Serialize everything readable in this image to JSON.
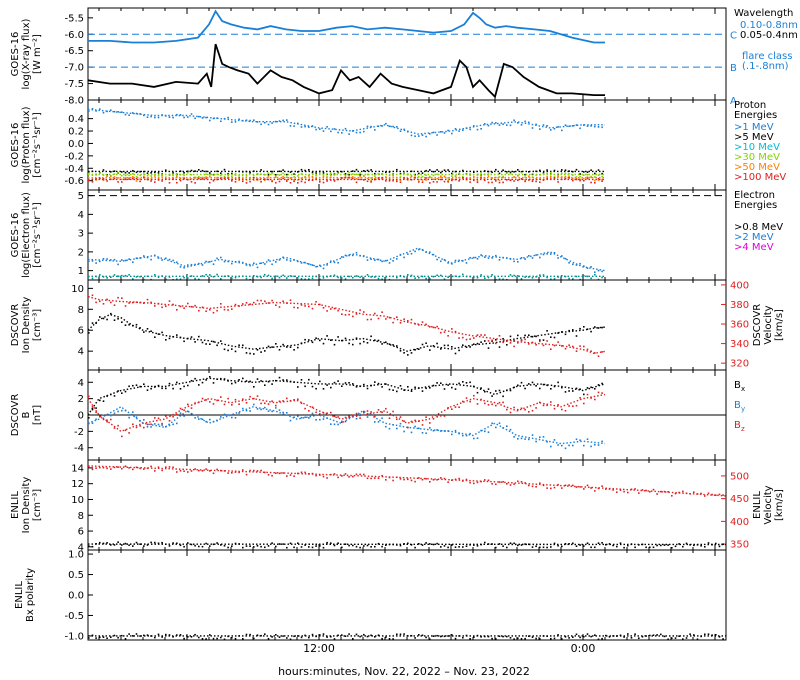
{
  "colors": {
    "black": "#000000",
    "blue": "#1a7fd6",
    "cyan": "#00bcd4",
    "green": "#7fd400",
    "orange": "#ff7f00",
    "red": "#e02020",
    "magenta": "#e000e0",
    "teal": "#009090"
  },
  "chart_data": {
    "type": "line",
    "xlabel": "hours:minutes, Nov. 22, 2022 – Nov. 23, 2022",
    "x_ticks": [
      "12:00",
      "0:00"
    ],
    "x_tick_hours": [
      12,
      24
    ],
    "x_range_hours": [
      1.5,
      30.5
    ],
    "panels": [
      {
        "id": "xray",
        "ylabel": [
          "GOES-16",
          "log(X-ray flux)",
          "[W m⁻²]"
        ],
        "ylim": [
          -8.0,
          -5.2
        ],
        "y_ticks": [
          -5.5,
          -6.0,
          -6.5,
          -7.0,
          -7.5,
          -8.0
        ],
        "y_tick_labels": [
          "-5.5",
          "-6.0",
          "-6.5",
          "-7.0",
          "-7.5",
          "-8.0"
        ],
        "legend_title": "Wavelength",
        "legend_items": [
          {
            "text": "0.10-0.8nm",
            "color": "blue"
          },
          {
            "text": "0.05-0.4nm",
            "color": "black"
          }
        ],
        "flare_class_label": [
          "flare class",
          "(.1-.8nm)"
        ],
        "flare_class_lines": [
          {
            "label": "C",
            "y": -6.0
          },
          {
            "label": "B",
            "y": -7.0
          },
          {
            "label": "A",
            "y": -8.0
          }
        ],
        "series": [
          {
            "color": "blue",
            "x": [
              1.5,
              2.5,
              3.5,
              4.5,
              5.5,
              6.5,
              7.0,
              7.3,
              7.6,
              8.0,
              8.6,
              9.2,
              9.8,
              10.5,
              11.2,
              12.0,
              12.8,
              13.5,
              14.2,
              15.0,
              15.8,
              16.5,
              17.2,
              18.0,
              18.6,
              19.0,
              19.3,
              19.6,
              20.0,
              20.5,
              21.0,
              21.8,
              22.5,
              23.5,
              24.5,
              25.0
            ],
            "y": [
              -6.2,
              -6.2,
              -6.25,
              -6.25,
              -6.2,
              -6.1,
              -5.7,
              -5.3,
              -5.6,
              -5.7,
              -5.8,
              -5.85,
              -5.75,
              -5.85,
              -5.9,
              -5.9,
              -5.8,
              -5.75,
              -5.85,
              -5.8,
              -5.85,
              -5.9,
              -5.95,
              -5.9,
              -5.7,
              -5.35,
              -5.5,
              -5.7,
              -5.8,
              -5.75,
              -5.8,
              -5.85,
              -5.9,
              -6.1,
              -6.25,
              -6.25
            ]
          },
          {
            "color": "black",
            "x": [
              1.5,
              2.5,
              3.5,
              4.5,
              5.5,
              6.5,
              6.9,
              7.1,
              7.3,
              7.6,
              7.9,
              8.3,
              8.8,
              9.2,
              9.8,
              10.3,
              10.8,
              11.3,
              12.0,
              12.6,
              13.0,
              13.4,
              13.8,
              14.3,
              14.8,
              15.3,
              15.8,
              16.5,
              17.2,
              18.0,
              18.4,
              18.7,
              19.0,
              19.3,
              19.7,
              20.0,
              20.4,
              20.8,
              21.3,
              22.0,
              22.8,
              23.5,
              24.5,
              25.0
            ],
            "y": [
              -7.4,
              -7.5,
              -7.5,
              -7.6,
              -7.45,
              -7.5,
              -7.2,
              -7.6,
              -6.3,
              -6.9,
              -7.0,
              -7.1,
              -7.2,
              -7.5,
              -7.1,
              -7.3,
              -7.4,
              -7.6,
              -7.8,
              -7.7,
              -7.1,
              -7.4,
              -7.3,
              -7.6,
              -7.2,
              -7.5,
              -7.6,
              -7.7,
              -7.8,
              -7.6,
              -6.8,
              -7.0,
              -7.6,
              -7.4,
              -7.7,
              -7.9,
              -6.9,
              -7.0,
              -7.3,
              -7.6,
              -7.8,
              -7.8,
              -7.85,
              -7.85
            ]
          }
        ]
      },
      {
        "id": "proton",
        "ylabel": [
          "GOES-16",
          "log(Proton flux)",
          "[cm⁻²s⁻¹sr⁻¹]"
        ],
        "ylim": [
          -0.75,
          0.7
        ],
        "y_ticks": [
          0.4,
          0.2,
          0.0,
          -0.2,
          -0.4,
          -0.6
        ],
        "y_tick_labels": [
          "0.4",
          "0.2",
          "0.0",
          "-0.2",
          "-0.4",
          "-0.6"
        ],
        "legend_title": [
          "Proton",
          "Energies"
        ],
        "legend_items": [
          {
            "text": ">1 MeV",
            "color": "blue"
          },
          {
            "text": ">5 MeV",
            "color": "black"
          },
          {
            "text": ">10 MeV",
            "color": "cyan"
          },
          {
            "text": ">30 MeV",
            "color": "green"
          },
          {
            "text": ">50 MeV",
            "color": "orange"
          },
          {
            "text": ">100 MeV",
            "color": "red"
          }
        ],
        "series": [
          {
            "color": "blue",
            "x": [
              1.5,
              3,
              4.5,
              6,
              7.5,
              9,
              10.5,
              12,
              13.5,
              15,
              16.5,
              18,
              19.5,
              21,
              22.5,
              24,
              25
            ],
            "y": [
              0.55,
              0.5,
              0.45,
              0.45,
              0.4,
              0.35,
              0.35,
              0.25,
              0.2,
              0.3,
              0.15,
              0.2,
              0.3,
              0.35,
              0.25,
              0.3,
              0.3
            ]
          },
          {
            "color": "black",
            "x": [
              1.5,
              6,
              12,
              18,
              25
            ],
            "y": [
              -0.45,
              -0.45,
              -0.45,
              -0.45,
              -0.45
            ]
          },
          {
            "color": "green",
            "x": [
              1.5,
              6,
              12,
              18,
              25
            ],
            "y": [
              -0.5,
              -0.5,
              -0.5,
              -0.5,
              -0.5
            ]
          },
          {
            "color": "orange",
            "x": [
              1.5,
              6,
              12,
              18,
              25
            ],
            "y": [
              -0.55,
              -0.55,
              -0.55,
              -0.55,
              -0.55
            ]
          },
          {
            "color": "red",
            "x": [
              1.5,
              6,
              12,
              18,
              25
            ],
            "y": [
              -0.58,
              -0.58,
              -0.58,
              -0.58,
              -0.58
            ]
          }
        ]
      },
      {
        "id": "electron",
        "ylabel": [
          "GOES-16",
          "log(Electron flux)",
          "[cm⁻²s⁻¹sr⁻¹]"
        ],
        "ylim": [
          0.5,
          5.3
        ],
        "y_ticks": [
          5,
          4,
          3,
          2,
          1
        ],
        "y_tick_labels": [
          "5",
          "4",
          "3",
          "2",
          "1"
        ],
        "legend_title": [
          "Electron",
          "Energies"
        ],
        "legend_items": [
          {
            "text": ">0.8 MeV",
            "color": "black"
          },
          {
            "text": ">2 MeV",
            "color": "blue"
          },
          {
            "text": ">4 MeV",
            "color": "magenta"
          }
        ],
        "dashed_line_y": 5.0,
        "series": [
          {
            "color": "blue",
            "x": [
              1.5,
              3,
              4.5,
              6,
              7.5,
              9,
              10.5,
              12,
              13.5,
              15,
              16.5,
              18,
              19.5,
              21,
              22.5,
              24,
              25
            ],
            "y": [
              1.6,
              1.5,
              1.8,
              1.2,
              1.6,
              1.3,
              1.7,
              1.2,
              1.9,
              1.5,
              2.2,
              1.4,
              1.8,
              1.6,
              2.0,
              1.2,
              1.0
            ]
          },
          {
            "color": "teal",
            "x": [
              1.5,
              25
            ],
            "y": [
              0.7,
              0.7
            ]
          }
        ]
      },
      {
        "id": "dscovr_density",
        "ylabel": [
          "DSCOVR",
          "Ion Density",
          "[cm⁻³]"
        ],
        "ylabel_right": [
          "DSCOVR",
          "Velocity",
          "[km/s]"
        ],
        "ylim": [
          2.2,
          10.8
        ],
        "y_ticks": [
          10,
          8,
          6,
          4
        ],
        "y_tick_labels": [
          "10",
          "8",
          "6",
          "4"
        ],
        "ylim_right": [
          313,
          405
        ],
        "y_ticks_right": [
          400,
          380,
          360,
          340,
          320
        ],
        "y_tick_labels_right": [
          "400",
          "380",
          "360",
          "340",
          "320"
        ],
        "series": [
          {
            "color": "black",
            "axis": "left",
            "x": [
              1.5,
              2,
              2.5,
              3,
              3.5,
              4,
              5,
              6,
              7,
              8,
              9,
              10,
              11,
              12,
              13,
              14,
              15,
              16,
              17,
              18,
              19,
              20,
              21,
              22,
              23,
              24,
              24.5,
              25
            ],
            "y": [
              6.0,
              7.0,
              7.5,
              7.2,
              6.5,
              6.0,
              5.5,
              5.2,
              5.0,
              4.5,
              4.2,
              4.4,
              4.6,
              5.2,
              5.0,
              5.2,
              4.8,
              4.0,
              4.5,
              4.2,
              4.6,
              4.8,
              5.2,
              5.5,
              5.8,
              6.0,
              6.2,
              6.3
            ]
          },
          {
            "color": "red",
            "axis": "right",
            "x": [
              1.5,
              2,
              3,
              4,
              5,
              6,
              7,
              8,
              9,
              10,
              11,
              12,
              13,
              14,
              15,
              16,
              17,
              18,
              19,
              20,
              21,
              22,
              23,
              24,
              24.5,
              25
            ],
            "y": [
              388,
              385,
              383,
              382,
              380,
              378,
              376,
              378,
              380,
              382,
              381,
              380,
              375,
              370,
              368,
              362,
              358,
              352,
              348,
              345,
              342,
              340,
              338,
              334,
              330,
              332
            ]
          }
        ]
      },
      {
        "id": "dscovr_b",
        "ylabel": [
          "DSCOVR",
          "B",
          "[nT]"
        ],
        "ylim": [
          -5.5,
          5.5
        ],
        "y_ticks": [
          4,
          2,
          0,
          -2,
          -4
        ],
        "y_tick_labels": [
          "4",
          "2",
          "0",
          "-2",
          "-4"
        ],
        "zero_line": true,
        "legend_items": [
          {
            "text": "Bx",
            "color": "black"
          },
          {
            "text": "By",
            "color": "blue"
          },
          {
            "text": "Bz",
            "color": "red"
          }
        ],
        "series": [
          {
            "color": "black",
            "x": [
              1.5,
              2,
              3,
              4,
              5,
              6,
              7,
              8,
              9,
              10,
              11,
              12,
              13,
              14,
              15,
              16,
              17,
              18,
              19,
              20,
              21,
              22,
              23,
              24,
              25
            ],
            "y": [
              0,
              2,
              3,
              3.5,
              3.5,
              4,
              4.5,
              4.2,
              4,
              4.2,
              4,
              3.8,
              3.8,
              3.5,
              3.8,
              3,
              3.5,
              3.8,
              3.5,
              2.5,
              3.5,
              3.8,
              3.5,
              3,
              3.8
            ]
          },
          {
            "color": "blue",
            "x": [
              1.5,
              2,
              3,
              4,
              5,
              6,
              7,
              8,
              9,
              10,
              11,
              12,
              13,
              14,
              15,
              16,
              17,
              18,
              19,
              20,
              21,
              22,
              23,
              24,
              25
            ],
            "y": [
              -1,
              -0.5,
              1,
              -1,
              -1.5,
              0.5,
              -1,
              0,
              1,
              0.5,
              -0.5,
              0,
              -1,
              0.5,
              -1,
              -1.5,
              -1.8,
              -2,
              -2.5,
              -1,
              -2.5,
              -3,
              -3.5,
              -3.2,
              -3.5
            ]
          },
          {
            "color": "red",
            "x": [
              1.5,
              2,
              3,
              4,
              5,
              6,
              7,
              8,
              9,
              10,
              11,
              12,
              13,
              14,
              15,
              16,
              17,
              18,
              19,
              20,
              21,
              22,
              23,
              24,
              25
            ],
            "y": [
              2,
              0,
              -2,
              -1,
              -0.5,
              1,
              2,
              1.5,
              2,
              1.5,
              1.8,
              0.5,
              -0.5,
              0,
              0.5,
              -1,
              -0.5,
              1,
              2,
              1.5,
              0.5,
              1.5,
              1,
              2,
              2.5
            ]
          }
        ]
      },
      {
        "id": "enlil_density",
        "ylabel": [
          "ENLIL",
          "Ion Density",
          "[cm⁻³]"
        ],
        "ylabel_right": [
          "ENLIL",
          "Velocity",
          "[km/s]"
        ],
        "ylim": [
          3.6,
          15.0
        ],
        "y_ticks": [
          14,
          12,
          10,
          8,
          6,
          4
        ],
        "y_tick_labels": [
          "14",
          "12",
          "10",
          "8",
          "6",
          "4"
        ],
        "ylim_right": [
          337,
          535
        ],
        "y_ticks_right": [
          500,
          450,
          400,
          350
        ],
        "y_tick_labels_right": [
          "500",
          "450",
          "400",
          "350"
        ],
        "series": [
          {
            "color": "black",
            "axis": "left",
            "x": [
              1.5,
              30.5
            ],
            "y": [
              4.35,
              4.3
            ]
          },
          {
            "color": "red",
            "axis": "right",
            "x": [
              1.5,
              5,
              10,
              15,
              20,
              25,
              30.5
            ],
            "y": [
              522,
              516,
              507,
              498,
              487,
              473,
              456
            ]
          }
        ]
      },
      {
        "id": "enlil_bx",
        "ylabel": [
          "ENLIL",
          "Bx polarity"
        ],
        "ylim": [
          -1.1,
          1.1
        ],
        "y_ticks": [
          1.0,
          0.5,
          0.0,
          -0.5,
          -1.0
        ],
        "y_tick_labels": [
          "1.0",
          "0.5",
          "0.0",
          "-0.5",
          "-1.0"
        ],
        "series": [
          {
            "color": "black",
            "x": [
              1.5,
              30.5
            ],
            "y": [
              -1.0,
              -1.0
            ]
          }
        ]
      }
    ]
  }
}
